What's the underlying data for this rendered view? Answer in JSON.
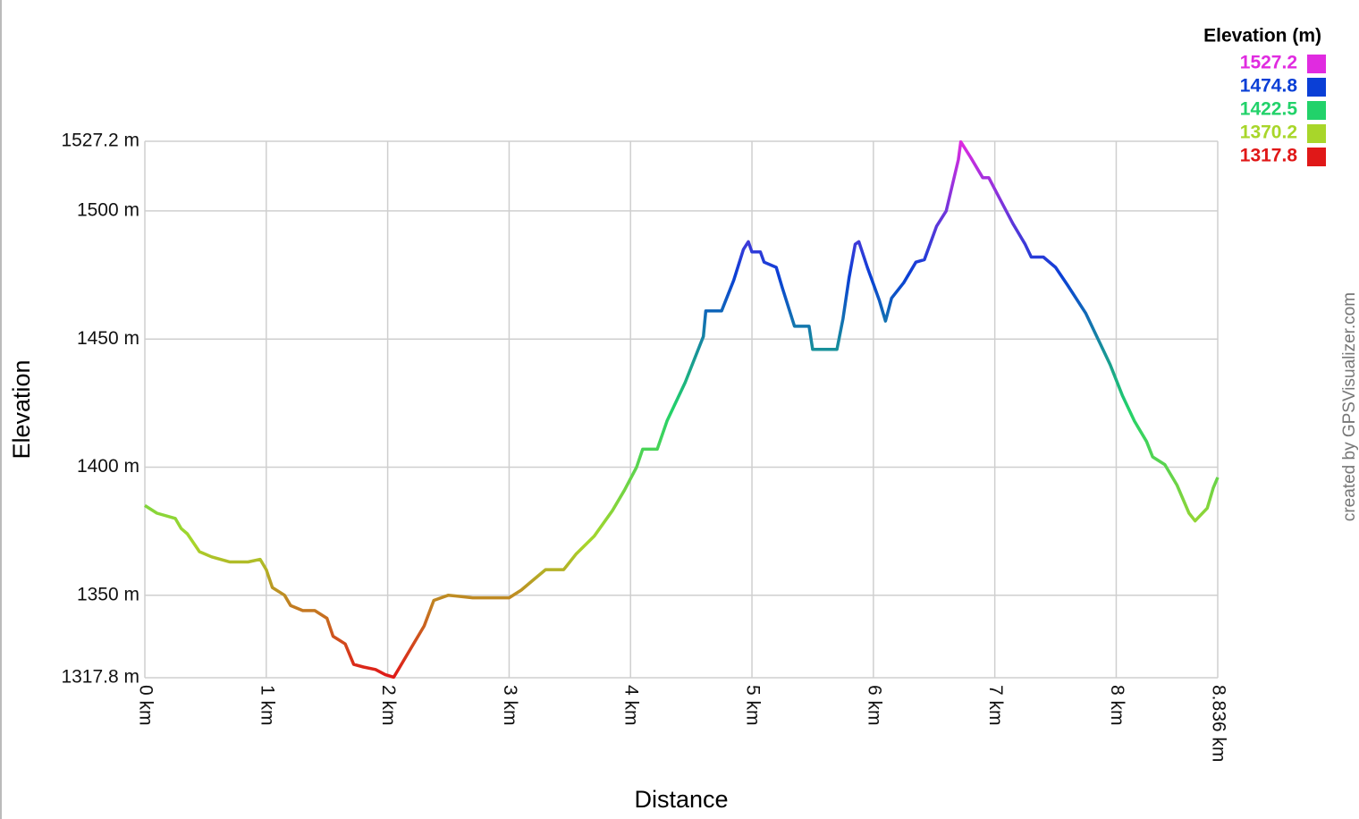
{
  "chart_data": {
    "type": "line",
    "xlabel": "Distance",
    "ylabel": "Elevation",
    "credit": "created by GPSVisualizer.com",
    "xlim": [
      0,
      8.836
    ],
    "ylim": [
      1317.8,
      1527.2
    ],
    "xticks": [
      {
        "value": 0,
        "label": "0 km"
      },
      {
        "value": 1,
        "label": "1 km"
      },
      {
        "value": 2,
        "label": "2 km"
      },
      {
        "value": 3,
        "label": "3 km"
      },
      {
        "value": 4,
        "label": "4 km"
      },
      {
        "value": 5,
        "label": "5 km"
      },
      {
        "value": 6,
        "label": "6 km"
      },
      {
        "value": 7,
        "label": "7 km"
      },
      {
        "value": 8,
        "label": "8 km"
      },
      {
        "value": 8.836,
        "label": "8.836 km"
      }
    ],
    "yticks": [
      {
        "value": 1317.8,
        "label": "1317.8 m"
      },
      {
        "value": 1350,
        "label": "1350 m"
      },
      {
        "value": 1400,
        "label": "1400 m"
      },
      {
        "value": 1450,
        "label": "1450 m"
      },
      {
        "value": 1500,
        "label": "1500 m"
      },
      {
        "value": 1527.2,
        "label": "1527.2 m"
      }
    ],
    "grid": true,
    "legend": {
      "title": "Elevation (m)",
      "position": "top-right",
      "items": [
        {
          "value": 1527.2,
          "color": "#e02be0"
        },
        {
          "value": 1474.8,
          "color": "#0a3fd6"
        },
        {
          "value": 1422.5,
          "color": "#22d26a"
        },
        {
          "value": 1370.2,
          "color": "#a8d62a"
        },
        {
          "value": 1317.8,
          "color": "#e01818"
        }
      ]
    },
    "x": [
      0,
      0.1,
      0.25,
      0.3,
      0.35,
      0.45,
      0.55,
      0.7,
      0.85,
      0.95,
      1.0,
      1.05,
      1.15,
      1.2,
      1.3,
      1.4,
      1.5,
      1.55,
      1.65,
      1.72,
      1.8,
      1.9,
      1.98,
      2.05,
      2.1,
      2.2,
      2.3,
      2.38,
      2.5,
      2.7,
      3.0,
      3.1,
      3.2,
      3.3,
      3.45,
      3.55,
      3.7,
      3.85,
      3.95,
      4.05,
      4.1,
      4.22,
      4.3,
      4.45,
      4.6,
      4.62,
      4.75,
      4.85,
      4.93,
      4.97,
      5.0,
      5.07,
      5.1,
      5.2,
      5.25,
      5.35,
      5.47,
      5.5,
      5.7,
      5.75,
      5.8,
      5.85,
      5.88,
      5.95,
      6.05,
      6.1,
      6.15,
      6.25,
      6.35,
      6.42,
      6.52,
      6.6,
      6.7,
      6.72,
      6.8,
      6.9,
      6.95,
      7.05,
      7.15,
      7.25,
      7.3,
      7.4,
      7.5,
      7.6,
      7.75,
      7.85,
      7.95,
      8.05,
      8.15,
      8.25,
      8.3,
      8.4,
      8.5,
      8.6,
      8.65,
      8.75,
      8.8,
      8.836
    ],
    "values": [
      1385,
      1382,
      1380,
      1376,
      1374,
      1367,
      1365,
      1363,
      1363,
      1364,
      1360,
      1353,
      1350,
      1346,
      1344,
      1344,
      1341,
      1334,
      1331,
      1323,
      1322,
      1321,
      1319,
      1318,
      1322,
      1330,
      1338,
      1348,
      1350,
      1349,
      1349,
      1352,
      1356,
      1360,
      1360,
      1366,
      1373,
      1383,
      1391,
      1400,
      1407,
      1407,
      1418,
      1433,
      1451,
      1461,
      1461,
      1473,
      1485,
      1488,
      1484,
      1484,
      1480,
      1478,
      1470,
      1455,
      1455,
      1446,
      1446,
      1458,
      1474,
      1487,
      1488,
      1478,
      1465,
      1457,
      1466,
      1472,
      1480,
      1481,
      1494,
      1500,
      1520,
      1527,
      1521,
      1513,
      1513,
      1504,
      1495,
      1487,
      1482,
      1482,
      1478,
      1471,
      1460,
      1450,
      1440,
      1428,
      1418,
      1410,
      1404,
      1401,
      1393,
      1382,
      1379,
      1384,
      1392,
      1396
    ]
  }
}
